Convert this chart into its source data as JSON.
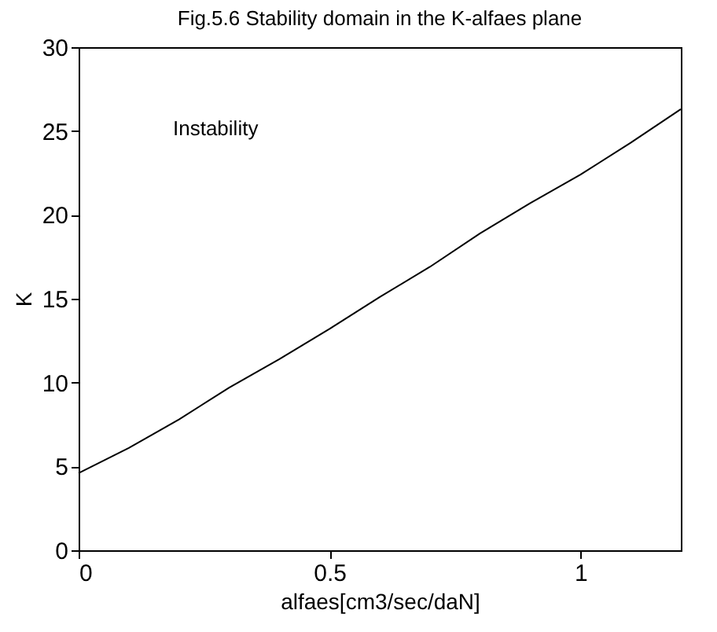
{
  "chart_data": {
    "type": "line",
    "title": "Fig.5.6 Stability domain in the K-alfaes plane",
    "xlabel": "alfaes[cm3/sec/daN]",
    "ylabel": "K",
    "x": [
      0,
      0.1,
      0.2,
      0.3,
      0.4,
      0.5,
      0.6,
      0.7,
      0.8,
      0.9,
      1.0,
      1.1,
      1.2
    ],
    "series": [
      {
        "color": "#000000",
        "values": [
          4.6,
          6.1,
          7.8,
          9.7,
          11.4,
          13.2,
          15.1,
          16.9,
          18.9,
          20.7,
          22.4,
          24.3,
          26.3
        ]
      }
    ],
    "xlim": [
      0,
      1.2
    ],
    "xticks": [
      0,
      0.5,
      1
    ],
    "ylim": [
      0,
      30
    ],
    "yticks": [
      0,
      5,
      10,
      15,
      20,
      25,
      30
    ],
    "annotations": [
      "Instability"
    ],
    "grid": false,
    "marker": "none",
    "line_style": "solid"
  }
}
